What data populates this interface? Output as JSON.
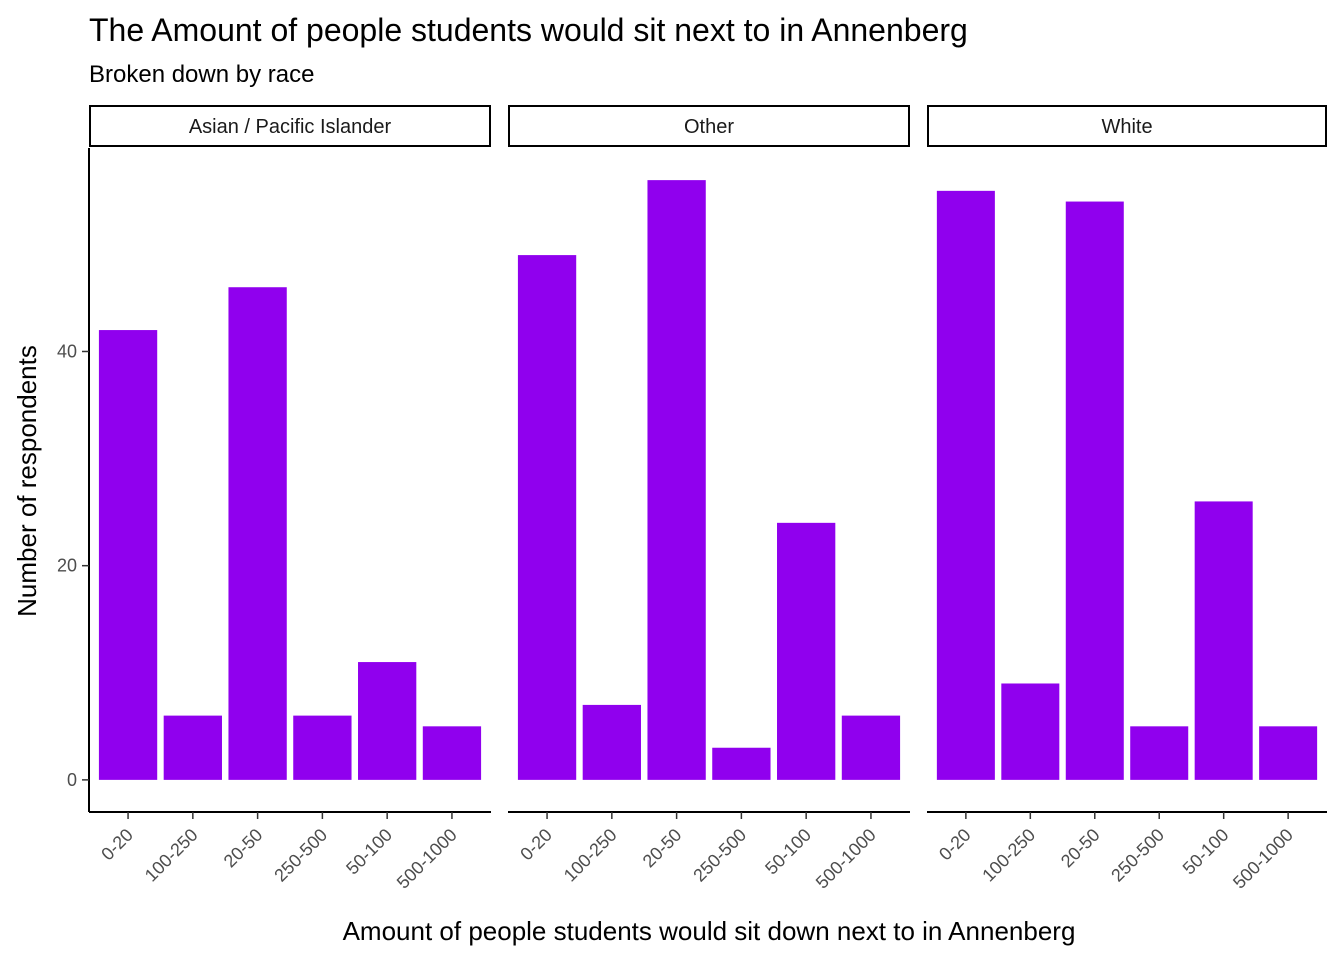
{
  "chart_data": {
    "type": "bar",
    "title": "The Amount of people students would sit next to in Annenberg",
    "subtitle": "Broken down by race",
    "xlabel": "Amount of people students would sit down next to in Annenberg",
    "ylabel": "Number of respondents",
    "categories": [
      "0-20",
      "100-250",
      "20-50",
      "250-500",
      "50-100",
      "500-1000"
    ],
    "y_ticks": [
      0,
      20,
      40
    ],
    "ylim": [
      -3,
      59
    ],
    "bar_color": "#9000EE",
    "grid": false,
    "facets": [
      {
        "name": "Asian / Pacific Islander",
        "values": [
          42,
          6,
          46,
          6,
          11,
          5
        ]
      },
      {
        "name": "Other",
        "values": [
          49,
          7,
          56,
          3,
          24,
          6
        ]
      },
      {
        "name": "White",
        "values": [
          55,
          9,
          54,
          5,
          26,
          5
        ]
      }
    ]
  }
}
